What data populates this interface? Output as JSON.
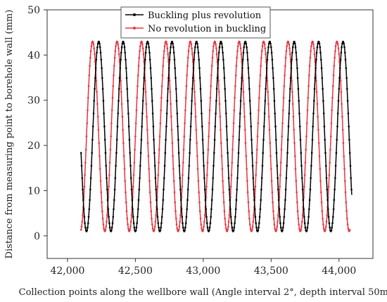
{
  "chart_data": {
    "type": "scatter",
    "title": "",
    "xlabel": "Collection points along the wellbore wall (Angle interval 2°, depth interval 50mm)",
    "ylabel": "Distance from measuring point to borehole wall (mm)",
    "xlim": [
      41850,
      44250
    ],
    "ylim": [
      -5,
      50
    ],
    "x_ticks": [
      42000,
      42500,
      43000,
      43500,
      44000
    ],
    "x_tick_labels": [
      "42,000",
      "42,500",
      "43,000",
      "43,500",
      "44,000"
    ],
    "y_ticks": [
      0,
      10,
      20,
      30,
      40,
      50
    ],
    "y_tick_labels": [
      "0",
      "10",
      "20",
      "30",
      "40",
      "50"
    ],
    "grid": false,
    "legend_position": "top-center",
    "series": [
      {
        "name": "Buckling plus revolution",
        "color": "#000000",
        "x_range": [
          42100,
          44095
        ],
        "amplitude": 21,
        "mid": 22,
        "period": 180,
        "peak_x": 42230
      },
      {
        "name": "No revolution in buckling",
        "color": "#e8353f",
        "x_range": [
          42100,
          44080
        ],
        "amplitude": 21,
        "mid": 22,
        "period": 180,
        "peak_x": 42185
      }
    ]
  }
}
